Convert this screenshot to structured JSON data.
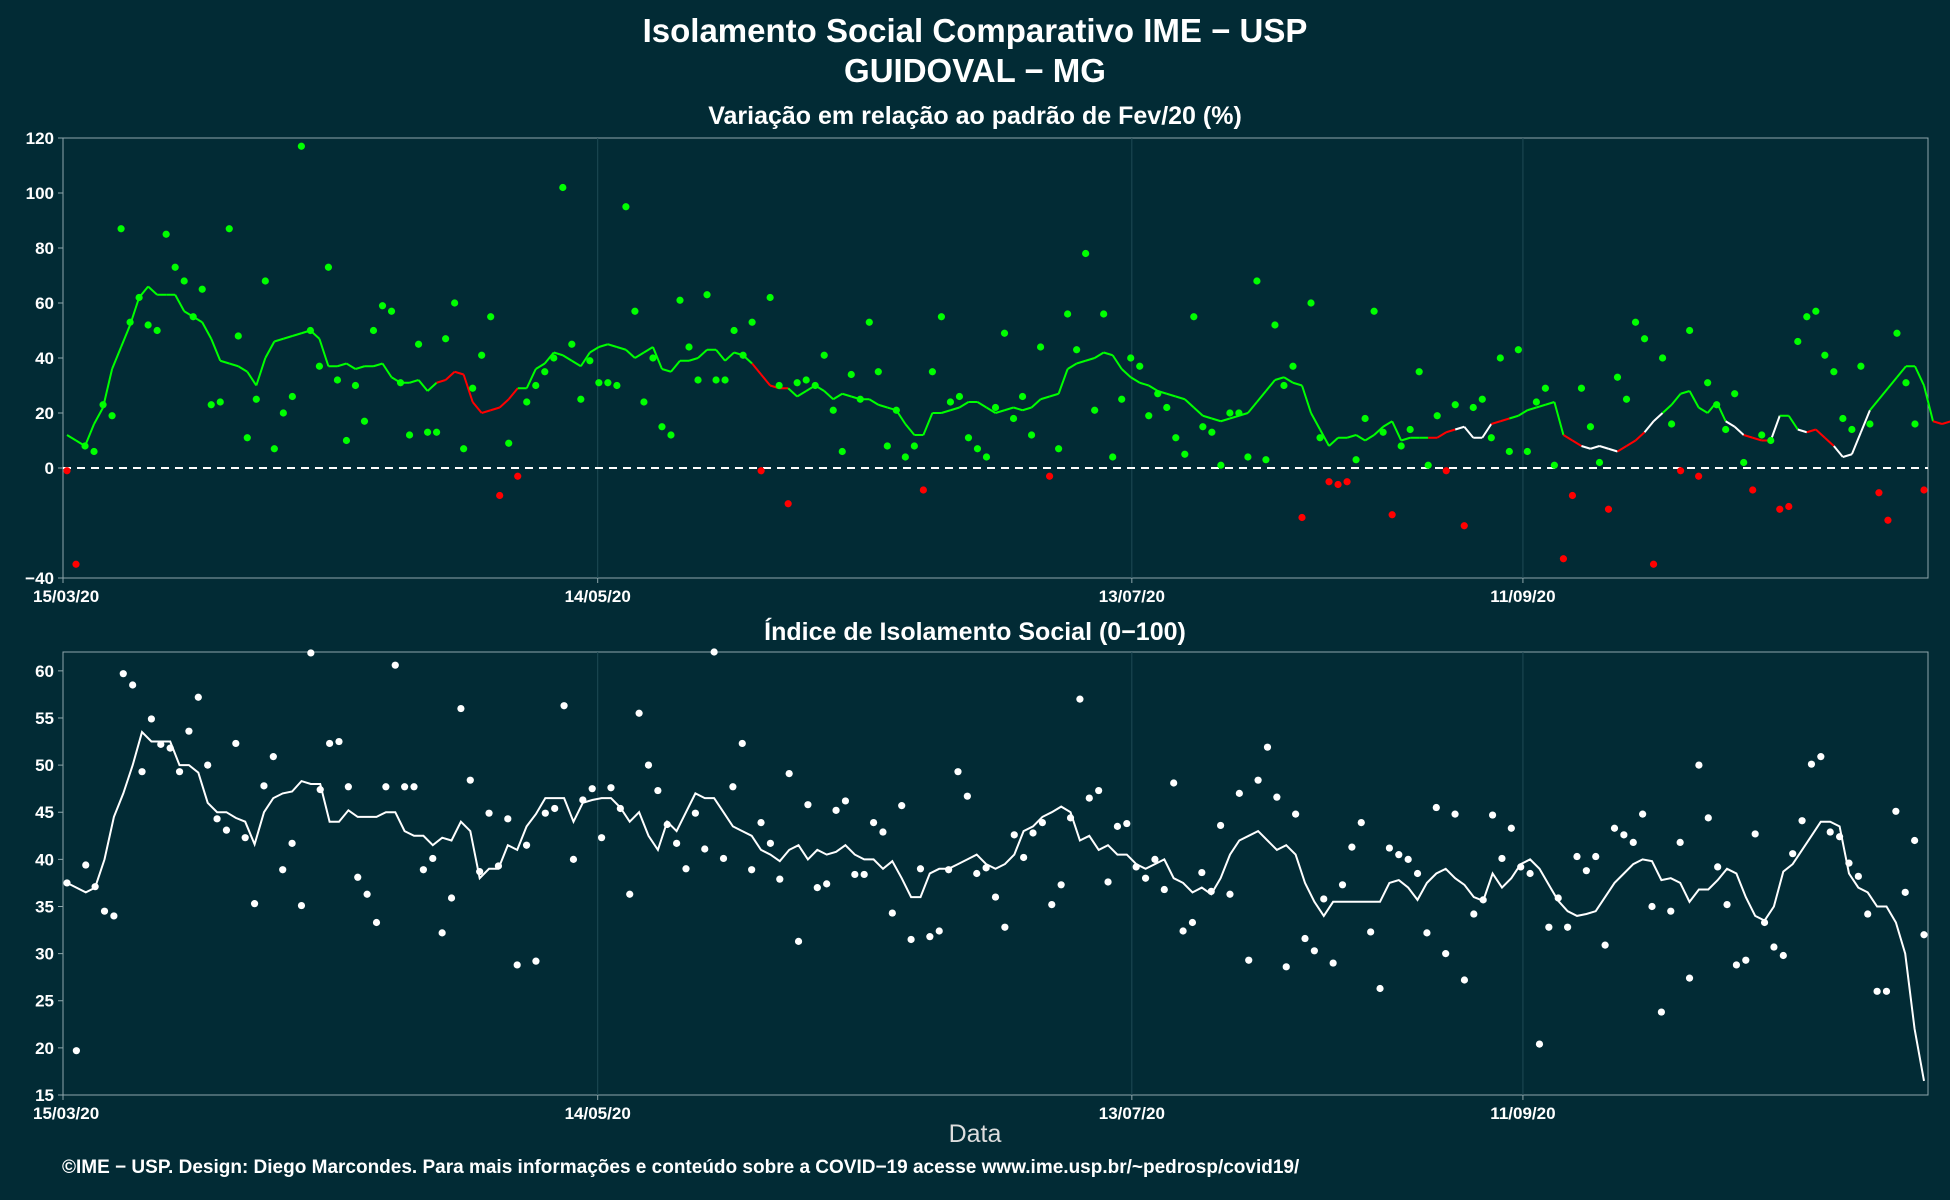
{
  "title": "Isolamento Social Comparativo IME − USP",
  "location": "GUIDOVAL − MG",
  "footer": "©IME − USP. Design: Diego Marcondes. Para mais informações e conteúdo sobre a COVID−19 acesse www.ime.usp.br/~pedrosp/covid19/",
  "colors": {
    "background": "#022b35",
    "positive": "#00ff00",
    "negative": "#ff0000",
    "white": "#ffffff",
    "grid": "#1f4a55"
  },
  "chart_data": [
    {
      "type": "scatter",
      "title": "Variação em relação ao padrão de Fev/20 (%)",
      "xlabel": "",
      "ylabel": "",
      "ylim": [
        -40,
        120
      ],
      "yticks": [
        "120",
        "100",
        "80",
        "60",
        "40",
        "20",
        "0",
        "−40"
      ],
      "xticks": [
        "15/03/20",
        "14/05/20",
        "13/07/20",
        "11/09/20"
      ],
      "reference_line": 0,
      "series": [
        {
          "values": [
            -1,
            -35,
            8,
            6,
            23,
            19,
            87,
            53,
            62,
            52,
            50,
            85,
            73,
            68,
            55,
            65,
            23,
            24,
            87,
            48,
            11,
            25,
            68,
            7,
            20,
            26,
            117,
            50,
            37,
            73,
            32,
            10,
            30,
            17,
            50,
            59,
            57,
            31,
            12,
            45,
            13,
            13,
            47,
            60,
            7,
            29,
            41,
            55,
            -10,
            9,
            -3,
            24,
            30,
            35,
            40,
            102,
            45,
            25,
            39,
            31,
            31,
            30,
            95,
            57,
            24,
            40,
            15,
            12,
            61,
            44,
            32,
            63,
            32,
            32,
            50,
            41,
            53,
            -1,
            62,
            30,
            -13,
            31,
            32,
            30,
            41,
            21,
            6,
            34,
            25,
            53,
            35,
            8,
            21,
            4,
            8,
            -8,
            35,
            55,
            24,
            26,
            11,
            7,
            4,
            22,
            49,
            18,
            26,
            12,
            44,
            -3,
            7,
            56,
            43,
            78,
            21,
            56,
            4,
            25,
            40,
            37,
            19,
            27,
            22,
            11,
            5,
            55,
            15,
            13,
            1,
            20,
            20,
            4,
            68,
            3,
            52,
            30,
            37,
            -18,
            60,
            11,
            -5,
            -6,
            -5,
            3,
            18,
            57,
            13,
            -17,
            8,
            14,
            35,
            1,
            19,
            -1,
            23,
            -21,
            22,
            25,
            11,
            40,
            6,
            43,
            6,
            24,
            29,
            1,
            -33,
            -10,
            29,
            15,
            2,
            -15,
            33,
            25,
            53,
            47,
            -35,
            40,
            16,
            -1,
            50,
            -3,
            31,
            23,
            14,
            27,
            2,
            -8,
            12,
            10,
            -15,
            -14,
            46,
            55,
            57,
            41,
            35,
            18,
            14,
            37,
            16,
            -9,
            -19,
            49,
            31,
            16,
            -8
          ]
        },
        {
          "values": [
            12,
            10,
            8,
            16,
            22,
            36,
            44,
            52,
            62,
            66,
            63,
            63,
            63,
            57,
            55,
            53,
            47,
            39,
            38,
            37,
            35,
            30,
            40,
            46,
            47,
            48,
            49,
            50,
            47,
            37,
            37,
            38,
            36,
            37,
            37,
            38,
            33,
            31,
            31,
            32,
            28,
            31,
            32,
            35,
            34,
            24,
            20,
            21,
            22,
            25,
            29,
            29,
            36,
            38,
            42,
            41,
            39,
            37,
            42,
            44,
            45,
            44,
            43,
            40,
            42,
            44,
            36,
            35,
            39,
            39,
            40,
            43,
            43,
            39,
            42,
            41,
            38,
            34,
            30,
            29,
            29,
            26,
            28,
            30,
            28,
            25,
            27,
            26,
            25,
            25,
            23,
            22,
            21,
            16,
            12,
            12,
            20,
            20,
            21,
            22,
            24,
            24,
            22,
            20,
            21,
            22,
            21,
            22,
            25,
            26,
            27,
            36,
            38,
            39,
            40,
            42,
            41,
            36,
            33,
            31,
            30,
            28,
            27,
            26,
            25,
            22,
            19,
            18,
            17,
            18,
            19,
            20,
            24,
            28,
            32,
            33,
            31,
            30,
            20,
            14,
            8,
            11,
            11,
            12,
            10,
            12,
            15,
            17,
            10,
            11,
            11,
            11,
            11,
            13,
            14,
            15,
            11,
            11,
            16,
            17,
            18,
            19,
            21,
            22,
            23,
            24,
            12,
            10,
            8,
            7,
            8,
            7,
            6,
            8,
            10,
            13,
            17,
            20,
            23,
            27,
            28,
            22,
            20,
            24,
            17,
            15,
            12,
            11,
            10,
            10,
            19,
            19,
            14,
            13,
            14,
            11,
            8,
            4,
            5,
            13,
            21,
            25,
            29,
            33,
            37,
            37,
            30,
            17,
            16,
            17,
            18,
            17,
            16,
            17,
            18,
            12
          ]
        }
      ]
    },
    {
      "type": "scatter",
      "title": "Índice de Isolamento Social (0−100)",
      "xlabel": "Data",
      "ylabel": "",
      "ylim": [
        15,
        62
      ],
      "yticks": [
        "60",
        "55",
        "50",
        "45",
        "40",
        "35",
        "30",
        "25",
        "20",
        "15"
      ],
      "xticks": [
        "15/03/20",
        "14/05/20",
        "13/07/20",
        "11/09/20"
      ],
      "series": [
        {
          "values": [
            37.5,
            19.7,
            39.4,
            37.1,
            34.5,
            34,
            59.7,
            58.5,
            49.3,
            54.9,
            52.2,
            51.8,
            49.3,
            53.6,
            57.2,
            50,
            44.3,
            43.1,
            52.3,
            42.3,
            35.3,
            47.8,
            50.9,
            38.9,
            41.7,
            35.1,
            61.9,
            47.4,
            52.3,
            52.5,
            47.7,
            38.1,
            36.3,
            33.3,
            47.7,
            60.6,
            47.7,
            47.7,
            38.9,
            40.1,
            32.2,
            35.9,
            56,
            48.4,
            38.7,
            44.9,
            39.3,
            44.3,
            28.8,
            41.5,
            29.2,
            44.9,
            45.4,
            56.3,
            40,
            46.3,
            47.5,
            42.3,
            47.6,
            45.4,
            36.3,
            55.5,
            50,
            47.3,
            43.7,
            41.7,
            39,
            44.9,
            41.1,
            62,
            40.1,
            47.7,
            52.3,
            38.9,
            43.9,
            41.7,
            37.9,
            49.1,
            31.3,
            45.8,
            37,
            37.4,
            45.2,
            46.2,
            38.4,
            38.4,
            43.9,
            42.9,
            34.3,
            45.7,
            31.5,
            39,
            31.8,
            32.4,
            38.9,
            49.3,
            46.7,
            38.5,
            39.1,
            36,
            32.8,
            42.6,
            40.2,
            42.8,
            43.9,
            35.2,
            37.3,
            44.4,
            57,
            46.5,
            47.3,
            37.6,
            43.5,
            43.8,
            39.2,
            38,
            40,
            36.8,
            48.1,
            32.4,
            33.3,
            38.6,
            36.6,
            43.6,
            36.3,
            47,
            29.3,
            48.4,
            51.9,
            46.6,
            28.6,
            44.8,
            31.6,
            30.3,
            35.8,
            29,
            37.3,
            41.3,
            43.9,
            32.3,
            26.3,
            41.2,
            40.5,
            40,
            38.5,
            32.2,
            45.5,
            30,
            44.8,
            27.2,
            34.2,
            35.7,
            44.7,
            40.1,
            43.3,
            39.2,
            38.5,
            20.4,
            32.8,
            35.9,
            32.8,
            40.3,
            38.8,
            40.3,
            30.9,
            43.3,
            42.6,
            41.8,
            44.8,
            35,
            23.8,
            34.5,
            41.8,
            27.4,
            50,
            44.4,
            39.2,
            35.2,
            28.8,
            29.3,
            42.7,
            33.3,
            30.7,
            29.8,
            40.6,
            44.1,
            50.1,
            50.9,
            42.9,
            42.4,
            39.6,
            38.2,
            34.2,
            26,
            26,
            45.1,
            36.5,
            42,
            32
          ]
        },
        {
          "values": [
            37.5,
            37,
            36.5,
            37,
            40,
            44.5,
            47,
            50,
            53.5,
            52.5,
            52.5,
            52.5,
            50,
            50,
            49.2,
            46,
            45,
            45,
            44.4,
            44,
            41.6,
            45,
            46.5,
            47,
            47.2,
            48.3,
            48,
            48,
            44,
            44,
            45.2,
            44.5,
            44.5,
            44.5,
            45,
            45,
            43,
            42.5,
            42.5,
            41.5,
            42.3,
            42,
            44,
            43,
            38,
            39,
            39,
            41.5,
            41,
            43.5,
            44.8,
            46.5,
            46.5,
            46.5,
            44,
            46,
            46.3,
            46.5,
            46.5,
            45.5,
            44,
            45,
            42.5,
            41,
            44,
            43,
            45,
            47,
            46.5,
            46.5,
            45,
            43.5,
            43,
            42.5,
            41,
            40.5,
            39.8,
            41,
            41.5,
            40,
            41,
            40.5,
            40.8,
            41.5,
            40.5,
            40,
            40,
            39,
            39.8,
            38,
            36,
            36,
            38.5,
            39,
            39,
            39.5,
            40,
            40.5,
            39.5,
            39,
            39.5,
            40.5,
            43,
            43.5,
            44.5,
            45,
            45.6,
            45,
            42,
            42.5,
            41,
            41.5,
            40.5,
            40.5,
            39.5,
            39,
            39.5,
            40,
            38,
            37.5,
            36.5,
            37,
            36.3,
            38,
            40.5,
            42,
            42.5,
            43,
            42,
            41,
            41.5,
            40.5,
            37.5,
            35.5,
            34,
            35.5,
            35.5,
            35.5,
            35.5,
            35.5,
            35.5,
            37.5,
            37.8,
            37,
            35.7,
            37.5,
            38.5,
            39,
            38,
            37.3,
            36,
            35.6,
            38.5,
            37,
            38,
            39.5,
            40,
            39,
            37.3,
            35.6,
            34.5,
            34,
            34.2,
            34.5,
            36,
            37.5,
            38.5,
            39.5,
            40,
            39.8,
            37.8,
            38,
            37.5,
            35.5,
            36.8,
            36.8,
            37.8,
            39,
            38.5,
            36,
            34,
            33.5,
            35,
            38.7,
            39.5,
            41,
            42.5,
            44,
            44,
            43.5,
            38.5,
            37,
            36.5,
            35,
            35,
            33.3,
            30,
            22,
            16.5
          ]
        }
      ]
    }
  ]
}
